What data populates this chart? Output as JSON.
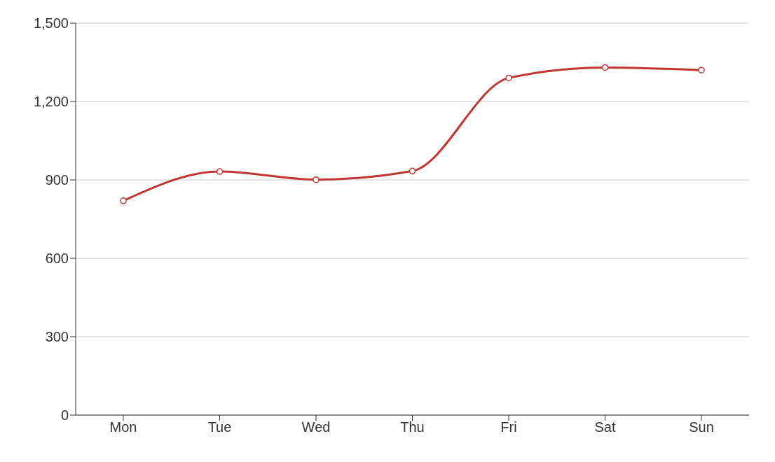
{
  "chart_data": {
    "type": "line",
    "categories": [
      "Mon",
      "Tue",
      "Wed",
      "Thu",
      "Fri",
      "Sat",
      "Sun"
    ],
    "series": [
      {
        "color": "#c23531",
        "values": [
          820,
          932,
          901,
          934,
          1290,
          1330,
          1320
        ]
      }
    ],
    "ylim": [
      0,
      1500
    ],
    "yticks": [
      {
        "value": 0,
        "label": "0"
      },
      {
        "value": 300,
        "label": "300"
      },
      {
        "value": 600,
        "label": "600"
      },
      {
        "value": 900,
        "label": "900"
      },
      {
        "value": 1200,
        "label": "1,200"
      },
      {
        "value": 1500,
        "label": "1,500"
      }
    ],
    "grid": "y",
    "marker": "circle",
    "legend": false
  }
}
